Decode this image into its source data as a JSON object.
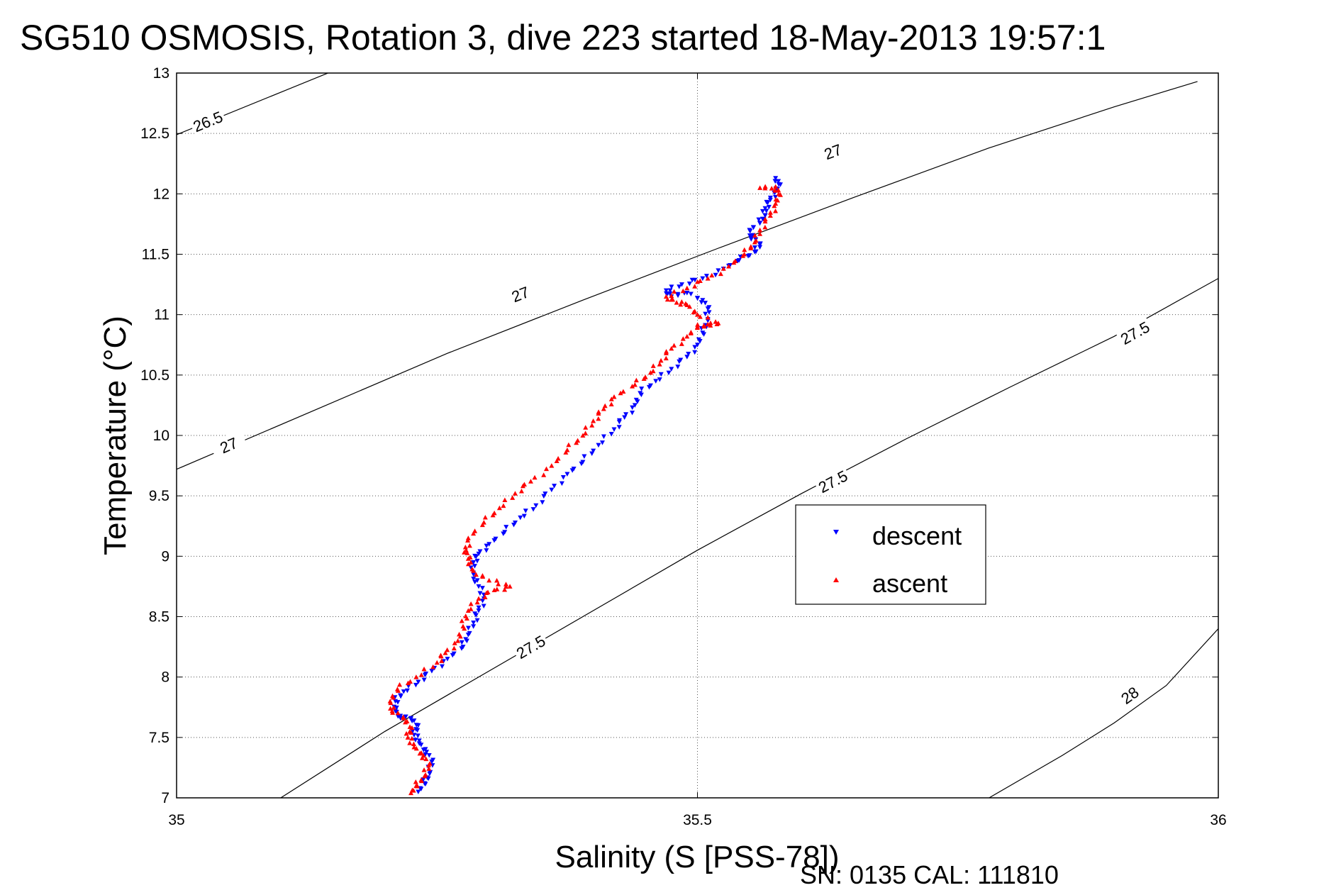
{
  "chart_data": {
    "type": "scatter",
    "title": "SG510 OSMOSIS, Rotation 3, dive 223 started 18-May-2013 19:57:1",
    "xlabel": "Salinity (S [PSS-78])",
    "ylabel": "Temperature (°C)",
    "xlim": [
      35,
      36
    ],
    "ylim": [
      7,
      13
    ],
    "x_ticks": [
      "35",
      "35.5",
      "36"
    ],
    "y_ticks": [
      "7",
      "7.5",
      "8",
      "8.5",
      "9",
      "9.5",
      "10",
      "10.5",
      "11",
      "11.5",
      "12",
      "12.5",
      "13"
    ],
    "grid": true,
    "legend_position": "center-right",
    "footer": "SN: 0135  CAL: 111810",
    "series": [
      {
        "name": "descent",
        "marker": "triangle-down",
        "color": "#0000ff",
        "points": [
          [
            35.232,
            7.05
          ],
          [
            35.238,
            7.12
          ],
          [
            35.243,
            7.2
          ],
          [
            35.245,
            7.3
          ],
          [
            35.24,
            7.38
          ],
          [
            35.233,
            7.45
          ],
          [
            35.228,
            7.52
          ],
          [
            35.232,
            7.6
          ],
          [
            35.225,
            7.66
          ],
          [
            35.215,
            7.66
          ],
          [
            35.21,
            7.72
          ],
          [
            35.21,
            7.8
          ],
          [
            35.218,
            7.88
          ],
          [
            35.232,
            7.96
          ],
          [
            35.245,
            8.05
          ],
          [
            35.26,
            8.15
          ],
          [
            35.275,
            8.25
          ],
          [
            35.28,
            8.35
          ],
          [
            35.285,
            8.45
          ],
          [
            35.29,
            8.55
          ],
          [
            35.295,
            8.65
          ],
          [
            35.29,
            8.75
          ],
          [
            35.285,
            8.85
          ],
          [
            35.285,
            8.95
          ],
          [
            35.29,
            9.02
          ],
          [
            35.3,
            9.1
          ],
          [
            35.315,
            9.2
          ],
          [
            35.33,
            9.32
          ],
          [
            35.345,
            9.42
          ],
          [
            35.36,
            9.55
          ],
          [
            35.375,
            9.68
          ],
          [
            35.39,
            9.78
          ],
          [
            35.405,
            9.92
          ],
          [
            35.42,
            10.05
          ],
          [
            35.43,
            10.15
          ],
          [
            35.44,
            10.25
          ],
          [
            35.445,
            10.35
          ],
          [
            35.46,
            10.45
          ],
          [
            35.475,
            10.55
          ],
          [
            35.49,
            10.65
          ],
          [
            35.5,
            10.75
          ],
          [
            35.505,
            10.85
          ],
          [
            35.51,
            10.95
          ],
          [
            35.51,
            11.05
          ],
          [
            35.505,
            11.12
          ],
          [
            35.49,
            11.18
          ],
          [
            35.475,
            11.15
          ],
          [
            35.47,
            11.2
          ],
          [
            35.485,
            11.25
          ],
          [
            35.505,
            11.3
          ],
          [
            35.525,
            11.38
          ],
          [
            35.54,
            11.45
          ],
          [
            35.555,
            11.52
          ],
          [
            35.56,
            11.58
          ],
          [
            35.552,
            11.64
          ],
          [
            35.55,
            11.7
          ],
          [
            35.56,
            11.76
          ],
          [
            35.565,
            11.82
          ],
          [
            35.565,
            11.88
          ],
          [
            35.57,
            11.95
          ],
          [
            35.575,
            12.02
          ],
          [
            35.578,
            12.08
          ],
          [
            35.575,
            12.13
          ]
        ]
      },
      {
        "name": "ascent",
        "marker": "triangle-up",
        "color": "#ff0000",
        "points": [
          [
            35.225,
            7.04
          ],
          [
            35.23,
            7.1
          ],
          [
            35.238,
            7.18
          ],
          [
            35.242,
            7.27
          ],
          [
            35.237,
            7.35
          ],
          [
            35.228,
            7.42
          ],
          [
            35.222,
            7.5
          ],
          [
            35.226,
            7.58
          ],
          [
            35.218,
            7.66
          ],
          [
            35.207,
            7.72
          ],
          [
            35.205,
            7.8
          ],
          [
            35.212,
            7.9
          ],
          [
            35.23,
            8.0
          ],
          [
            35.25,
            8.12
          ],
          [
            35.258,
            8.2
          ],
          [
            35.27,
            8.3
          ],
          [
            35.275,
            8.42
          ],
          [
            35.28,
            8.55
          ],
          [
            35.29,
            8.65
          ],
          [
            35.305,
            8.72
          ],
          [
            35.32,
            8.75
          ],
          [
            35.3,
            8.8
          ],
          [
            35.285,
            8.88
          ],
          [
            35.28,
            8.98
          ],
          [
            35.278,
            9.05
          ],
          [
            35.28,
            9.15
          ],
          [
            35.295,
            9.28
          ],
          [
            35.31,
            9.4
          ],
          [
            35.325,
            9.52
          ],
          [
            35.34,
            9.62
          ],
          [
            35.36,
            9.75
          ],
          [
            35.375,
            9.88
          ],
          [
            35.39,
            10.0
          ],
          [
            35.4,
            10.12
          ],
          [
            35.41,
            10.22
          ],
          [
            35.42,
            10.32
          ],
          [
            35.44,
            10.42
          ],
          [
            35.455,
            10.52
          ],
          [
            35.465,
            10.62
          ],
          [
            35.475,
            10.72
          ],
          [
            35.49,
            10.82
          ],
          [
            35.5,
            10.9
          ],
          [
            35.51,
            10.92
          ],
          [
            35.52,
            10.93
          ],
          [
            35.5,
            11.0
          ],
          [
            35.49,
            11.08
          ],
          [
            35.48,
            11.1
          ],
          [
            35.47,
            11.15
          ],
          [
            35.49,
            11.22
          ],
          [
            35.51,
            11.3
          ],
          [
            35.53,
            11.4
          ],
          [
            35.545,
            11.5
          ],
          [
            35.555,
            11.6
          ],
          [
            35.56,
            11.7
          ],
          [
            35.57,
            11.82
          ],
          [
            35.575,
            11.92
          ],
          [
            35.578,
            12.0
          ],
          [
            35.575,
            12.06
          ],
          [
            35.56,
            12.05
          ]
        ]
      }
    ],
    "contours": [
      {
        "label": "26.5",
        "points": [
          [
            35.0,
            12.49
          ],
          [
            36.0,
            16.0
          ]
        ],
        "label_at": [
          35.03,
          12.6
        ]
      },
      {
        "label": "27",
        "points": [
          [
            35.0,
            9.72
          ],
          [
            35.13,
            10.2
          ],
          [
            35.26,
            10.68
          ],
          [
            35.39,
            11.12
          ],
          [
            35.52,
            11.55
          ],
          [
            35.65,
            11.97
          ],
          [
            35.78,
            12.38
          ],
          [
            35.9,
            12.72
          ],
          [
            35.98,
            12.93
          ]
        ],
        "label_at": [
          35.05,
          9.92
        ]
      },
      {
        "label": "27",
        "points": [
          [
            35.0,
            9.72
          ],
          [
            35.13,
            10.2
          ],
          [
            35.26,
            10.68
          ],
          [
            35.39,
            11.12
          ],
          [
            35.52,
            11.55
          ],
          [
            35.65,
            11.97
          ],
          [
            35.78,
            12.38
          ],
          [
            35.9,
            12.72
          ],
          [
            35.98,
            12.93
          ]
        ],
        "label_at": [
          35.33,
          11.17
        ]
      },
      {
        "label": "27",
        "points": [
          [
            35.0,
            9.72
          ],
          [
            35.13,
            10.2
          ],
          [
            35.26,
            10.68
          ],
          [
            35.39,
            11.12
          ],
          [
            35.52,
            11.55
          ],
          [
            35.65,
            11.97
          ],
          [
            35.78,
            12.38
          ],
          [
            35.9,
            12.72
          ],
          [
            35.98,
            12.93
          ]
        ],
        "label_at": [
          35.63,
          12.35
        ]
      },
      {
        "label": "27.5",
        "points": [
          [
            35.1,
            7.0
          ],
          [
            35.2,
            7.55
          ],
          [
            35.3,
            8.05
          ],
          [
            35.4,
            8.55
          ],
          [
            35.5,
            9.05
          ],
          [
            35.6,
            9.52
          ],
          [
            35.7,
            9.97
          ],
          [
            35.8,
            10.4
          ],
          [
            35.9,
            10.82
          ],
          [
            36.0,
            11.3
          ]
        ],
        "label_at": [
          35.34,
          8.25
        ]
      },
      {
        "label": "27.5",
        "points": [
          [
            35.1,
            7.0
          ],
          [
            35.2,
            7.55
          ],
          [
            35.3,
            8.05
          ],
          [
            35.4,
            8.55
          ],
          [
            35.5,
            9.05
          ],
          [
            35.6,
            9.52
          ],
          [
            35.7,
            9.97
          ],
          [
            35.8,
            10.4
          ],
          [
            35.9,
            10.82
          ],
          [
            36.0,
            11.3
          ]
        ],
        "label_at": [
          35.63,
          9.62
        ]
      },
      {
        "label": "27.5",
        "points": [
          [
            35.1,
            7.0
          ],
          [
            35.2,
            7.55
          ],
          [
            35.3,
            8.05
          ],
          [
            35.4,
            8.55
          ],
          [
            35.5,
            9.05
          ],
          [
            35.6,
            9.52
          ],
          [
            35.7,
            9.97
          ],
          [
            35.8,
            10.4
          ],
          [
            35.9,
            10.82
          ],
          [
            36.0,
            11.3
          ]
        ],
        "label_at": [
          35.92,
          10.85
        ]
      },
      {
        "label": "28",
        "points": [
          [
            35.78,
            7.0
          ],
          [
            35.85,
            7.35
          ],
          [
            35.9,
            7.62
          ],
          [
            35.95,
            7.93
          ],
          [
            36.0,
            8.4
          ]
        ],
        "label_at": [
          35.915,
          7.85
        ]
      }
    ]
  }
}
